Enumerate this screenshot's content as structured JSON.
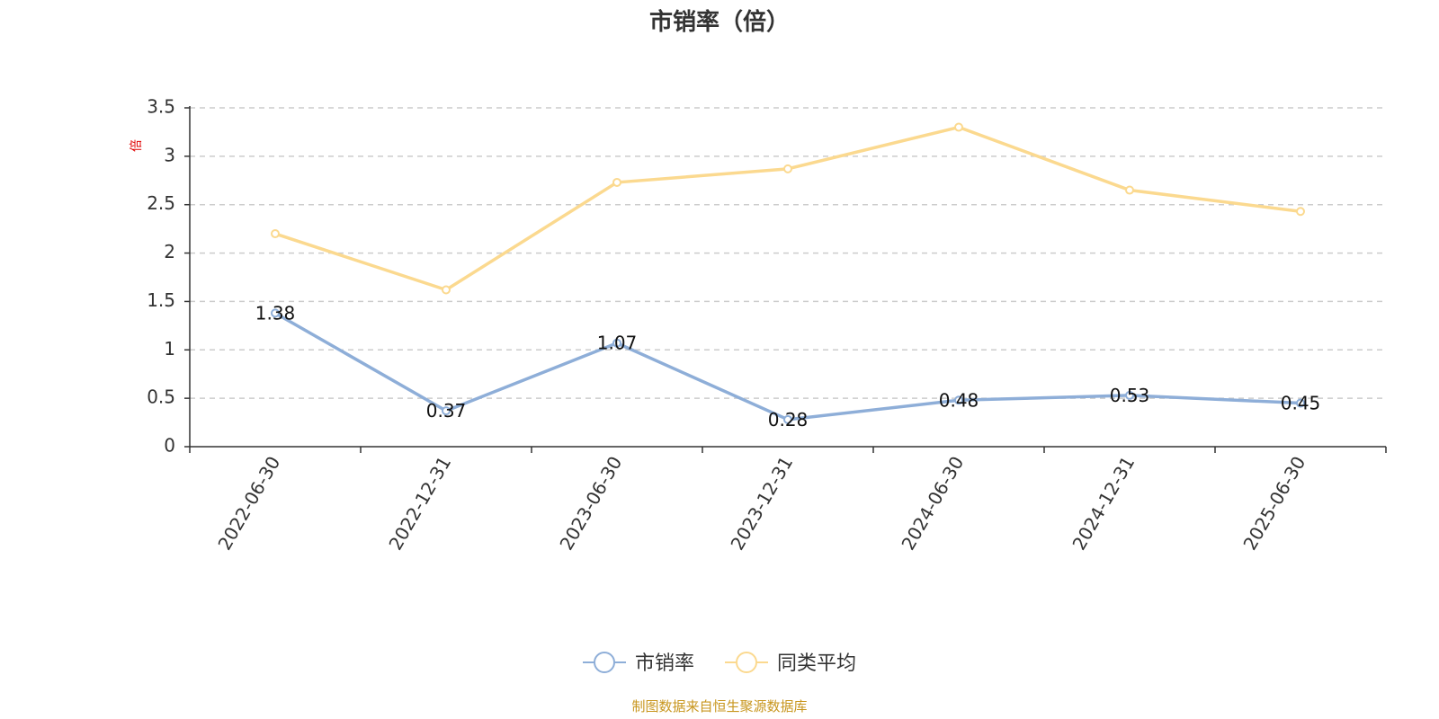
{
  "chart_data": {
    "type": "line",
    "title": "市销率（倍）",
    "ylabel": "倍",
    "xlabel": "",
    "categories": [
      "2022-06-30",
      "2022-12-31",
      "2023-06-30",
      "2023-12-31",
      "2024-06-30",
      "2024-12-31",
      "2025-06-30"
    ],
    "ylim": [
      0,
      3.5
    ],
    "yticks": [
      "0",
      "0.5",
      "1",
      "1.5",
      "2",
      "2.5",
      "3",
      "3.5"
    ],
    "grid": true,
    "legend_position": "bottom-center",
    "series": [
      {
        "name": "市销率",
        "color": "#8eaed8",
        "values": [
          1.38,
          0.37,
          1.07,
          0.28,
          0.48,
          0.53,
          0.45
        ],
        "labels": [
          "1.38",
          "0.37",
          "1.07",
          "0.28",
          "0.48",
          "0.53",
          "0.45"
        ]
      },
      {
        "name": "同类平均",
        "color": "#fbd98f",
        "values": [
          2.2,
          1.62,
          2.73,
          2.87,
          3.3,
          2.65,
          2.43
        ]
      }
    ]
  },
  "source": "制图数据来自恒生聚源数据库"
}
